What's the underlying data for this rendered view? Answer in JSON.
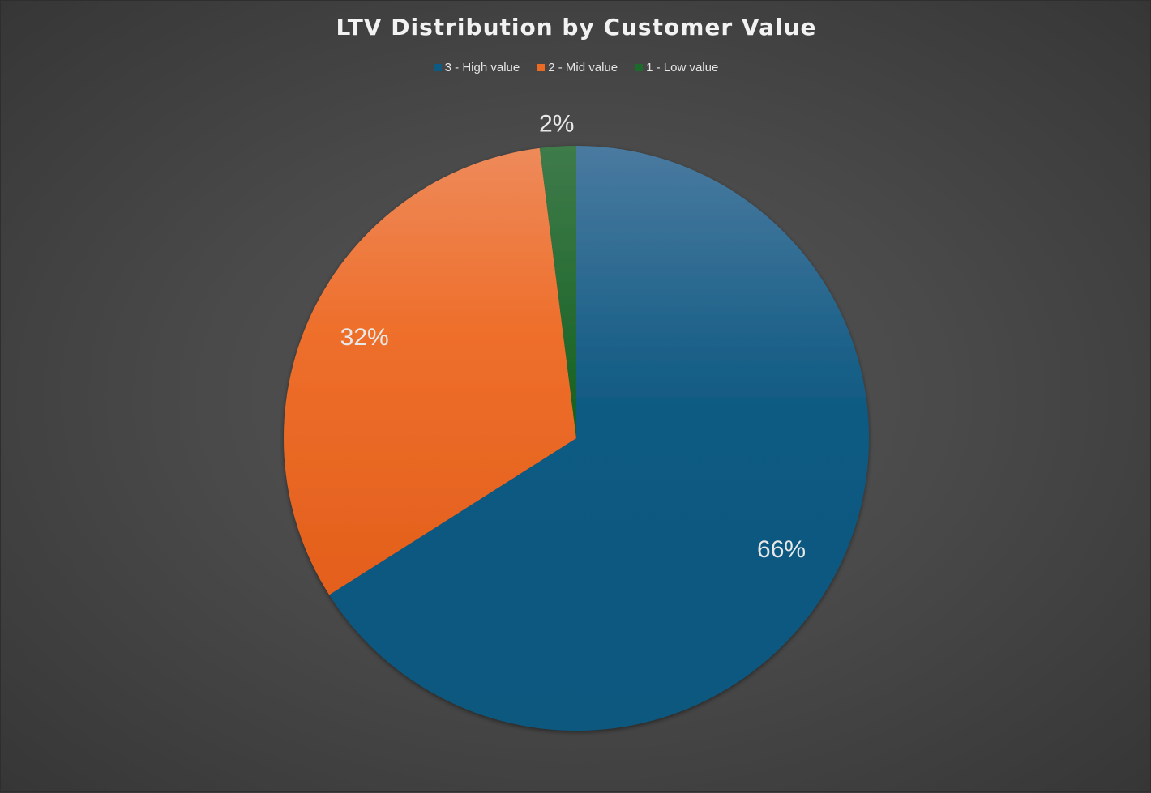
{
  "chart_data": {
    "type": "pie",
    "title": "LTV Distribution by Customer Value",
    "categories": [
      "3 - High value",
      "2 - Mid value",
      "1 - Low value"
    ],
    "values": [
      66,
      32,
      2
    ],
    "labels": [
      "66%",
      "32%",
      "2%"
    ],
    "colors": [
      "#0f5a82",
      "#ec6a24",
      "#1d6b2a"
    ],
    "legend_position": "top",
    "start_angle_deg": 0,
    "direction": "clockwise"
  }
}
